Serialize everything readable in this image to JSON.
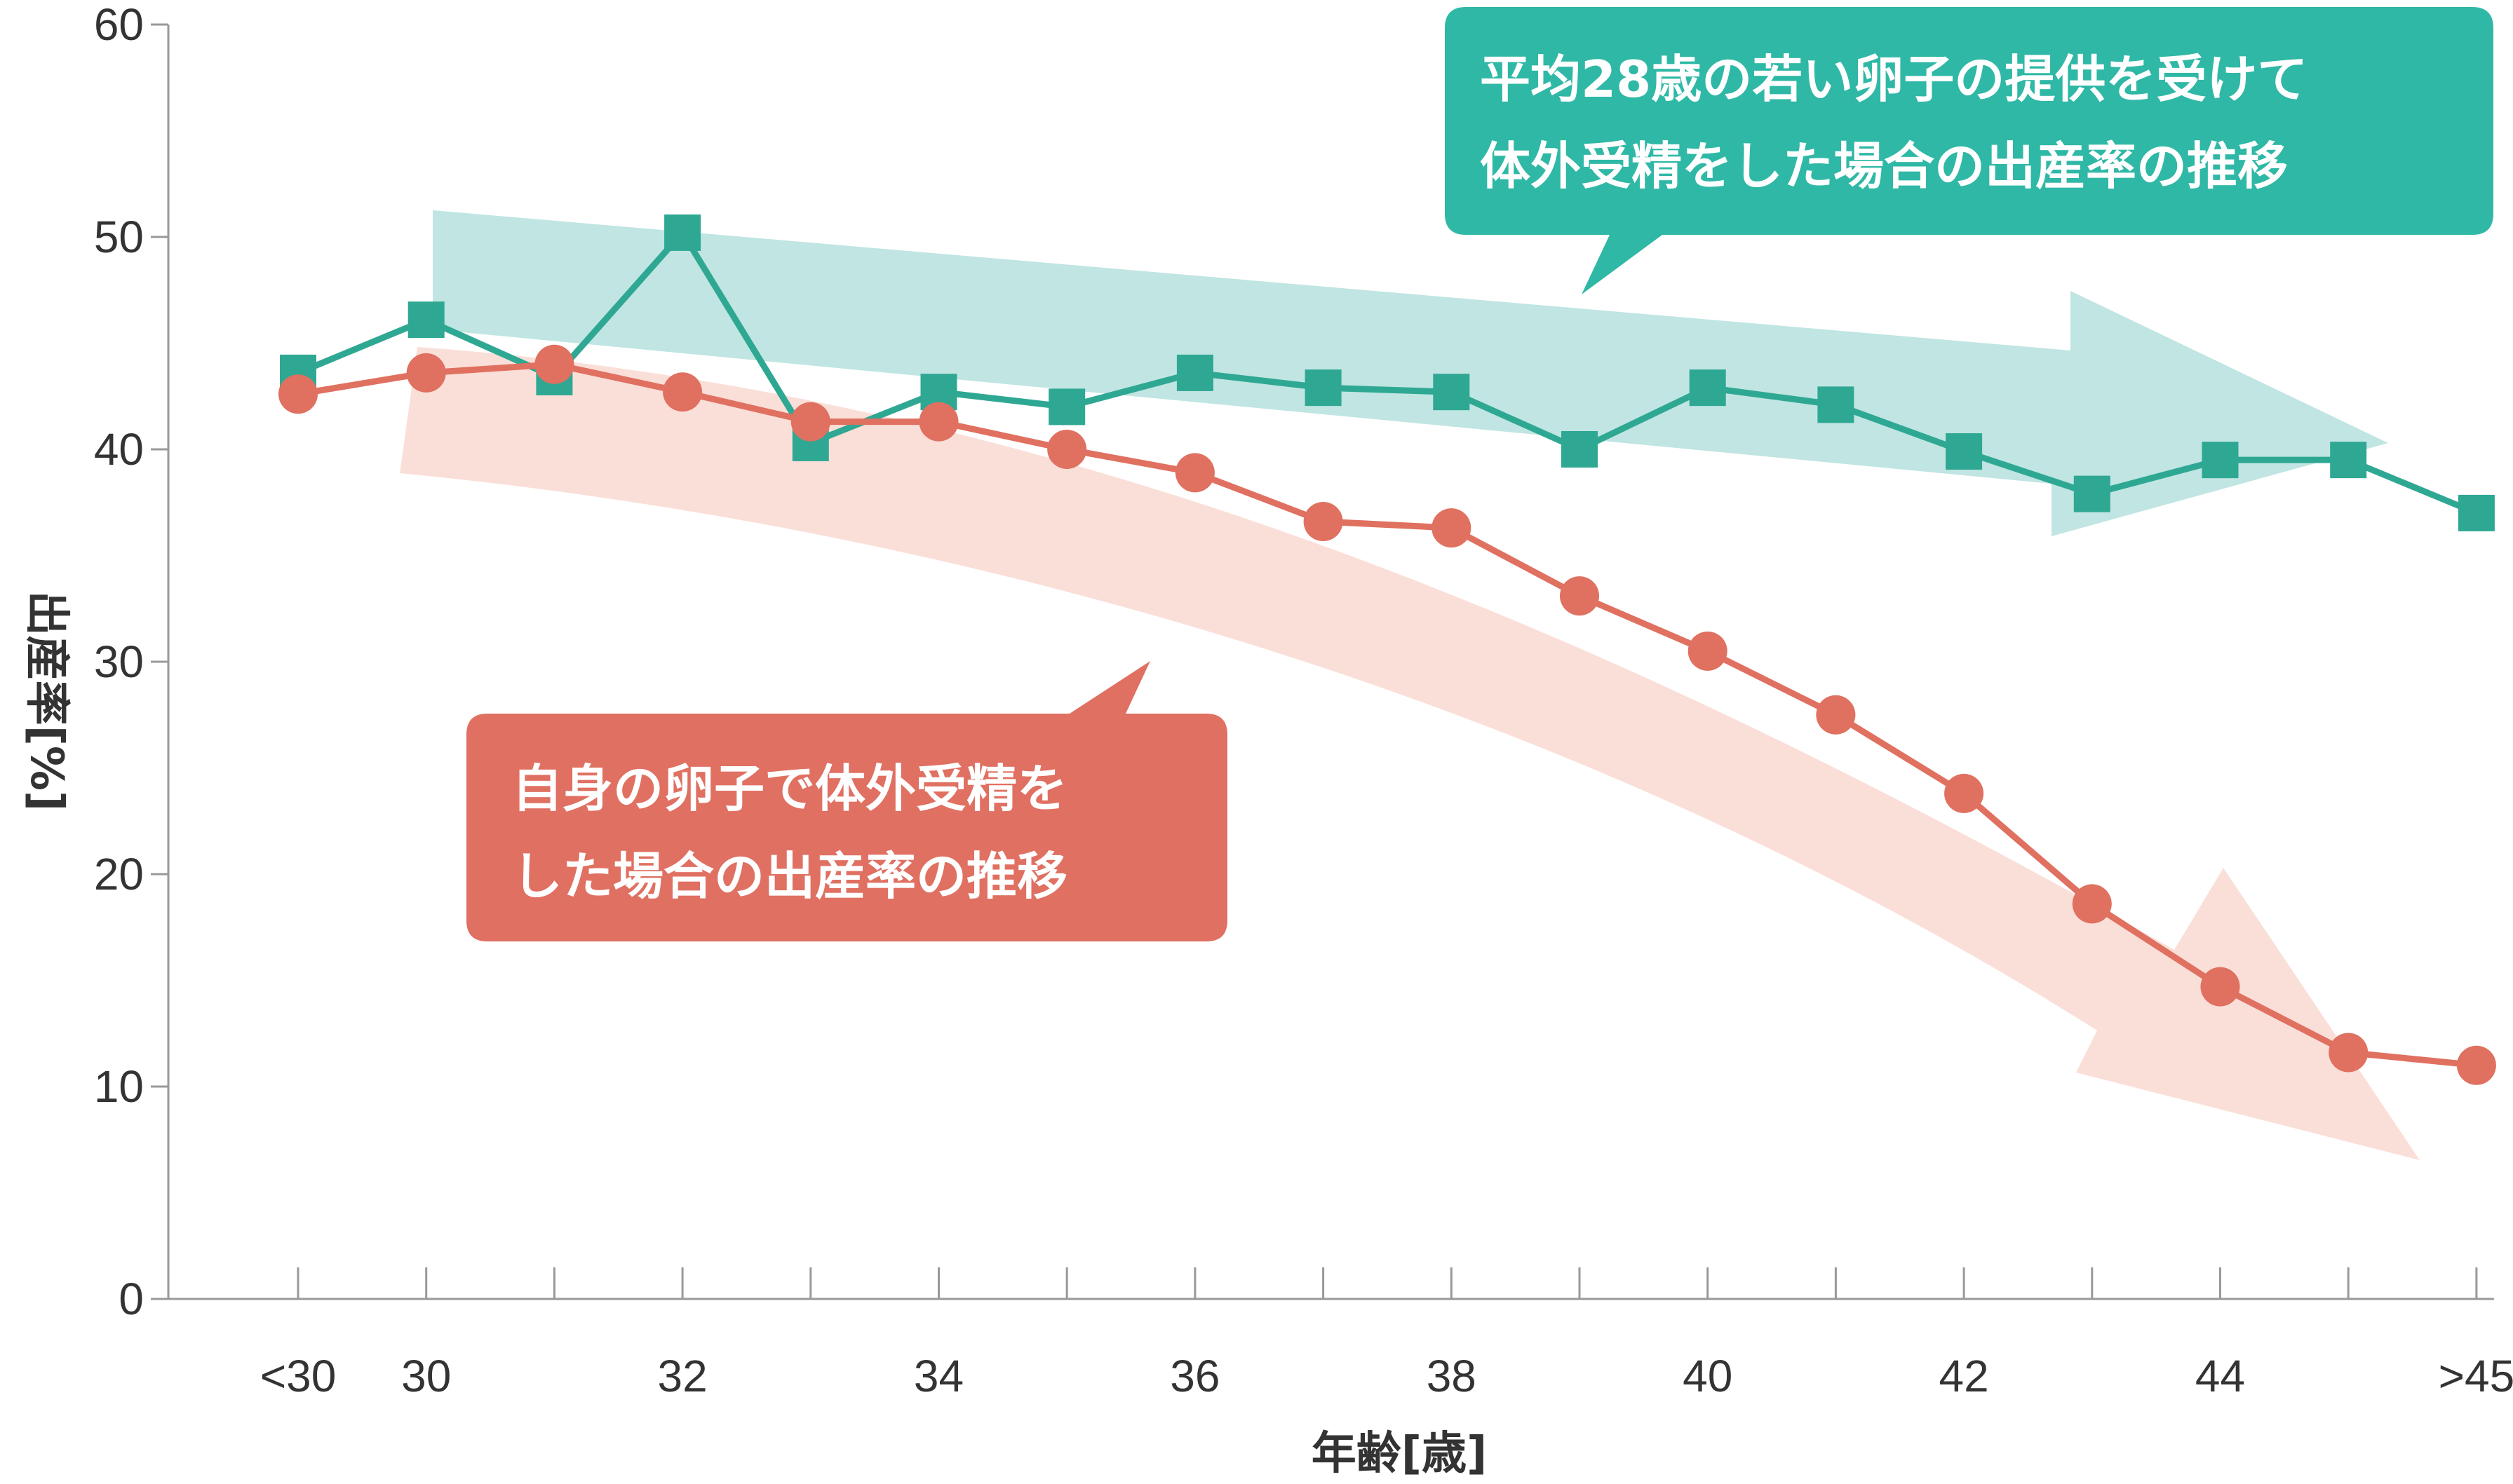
{
  "chart_data": {
    "type": "line",
    "categories": [
      "<30",
      "30",
      "31",
      "32",
      "33",
      "34",
      "35",
      "36",
      "37",
      "38",
      "39",
      "40",
      "41",
      "42",
      "43",
      "44",
      "45",
      ">45"
    ],
    "x_tick_labels": [
      "<30",
      "30",
      "32",
      "34",
      "36",
      "38",
      "40",
      "42",
      "44",
      ">45"
    ],
    "ylim": [
      0,
      60
    ],
    "y_ticks": [
      0,
      10,
      20,
      30,
      40,
      50,
      60
    ],
    "xlabel": "年齢[歳]",
    "ylabel": "出産率[%]",
    "series": [
      {
        "name": "平均28歳の若い卵子の提供を受けて体外受精をした場合の出産率の推移",
        "marker": "square",
        "color": "#2fa893",
        "values": [
          43.6,
          46.1,
          43.4,
          50.2,
          40.3,
          42.7,
          42.0,
          43.6,
          42.9,
          42.7,
          40.0,
          42.9,
          42.1,
          39.9,
          37.9,
          39.5,
          39.5,
          37.0
        ]
      },
      {
        "name": "自身の卵子で体外受精をした場合の出産率の推移",
        "marker": "circle",
        "color": "#e07060",
        "values": [
          42.6,
          43.6,
          44.0,
          42.7,
          41.3,
          41.3,
          40.0,
          38.9,
          36.6,
          36.3,
          33.1,
          30.5,
          27.5,
          23.8,
          18.6,
          14.7,
          11.6,
          11.0
        ]
      }
    ],
    "callouts": [
      {
        "lines": [
          "平均28歳の若い卵子の提供を受けて",
          "体外受精をした場合の出産率の推移"
        ],
        "color": "#2fb8a6"
      },
      {
        "lines": [
          "自身の卵子で体外受精を",
          "した場合の出産率の推移"
        ],
        "color": "#e07062"
      }
    ],
    "trend_arrow_colors": [
      "#b9e2df",
      "#fadcd4"
    ],
    "axis_color": "#999999",
    "grid": false
  }
}
